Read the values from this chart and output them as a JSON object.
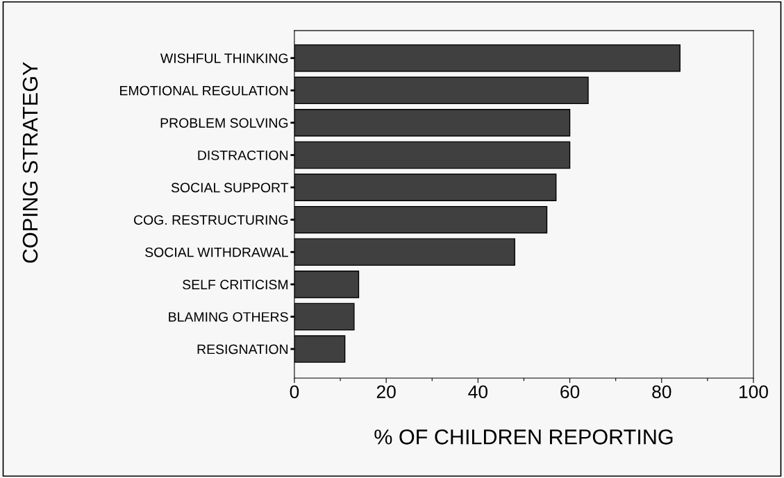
{
  "chart_data": {
    "type": "bar",
    "orientation": "horizontal",
    "categories": [
      "WISHFUL THINKING",
      "EMOTIONAL REGULATION",
      "PROBLEM SOLVING",
      "DISTRACTION",
      "SOCIAL SUPPORT",
      "COG. RESTRUCTURING",
      "SOCIAL WITHDRAWAL",
      "SELF CRITICISM",
      "BLAMING OTHERS",
      "RESIGNATION"
    ],
    "values": [
      84,
      64,
      60,
      60,
      57,
      55,
      48,
      14,
      13,
      11
    ],
    "color": "#404040",
    "xlim": [
      0,
      100
    ],
    "xticks": [
      0,
      {
        "value": 10,
        "label": null
      },
      20,
      {
        "value": 30,
        "label": null
      },
      40,
      {
        "value": 50,
        "label": null
      },
      60,
      {
        "value": 70,
        "label": null
      },
      80,
      {
        "value": 90,
        "label": null
      },
      100
    ],
    "xlabel": "% OF CHILDREN REPORTING",
    "ylabel": "COPING STRATEGY",
    "grid": false,
    "legend": false
  }
}
